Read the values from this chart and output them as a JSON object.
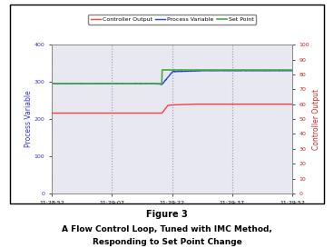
{
  "ylabel_left": "Process Variable",
  "ylabel_right": "Controller Output",
  "x_tick_labels": [
    "11:28:52",
    "11:29:07",
    "11:29:22",
    "11:29:37",
    "11:29:52"
  ],
  "x_tick_positions": [
    0,
    15,
    30,
    45,
    60
  ],
  "ylim_left": [
    0,
    400
  ],
  "ylim_right": [
    0,
    100
  ],
  "y_ticks_left": [
    0,
    100,
    200,
    300,
    400
  ],
  "y_ticks_right": [
    0,
    10,
    20,
    30,
    40,
    50,
    60,
    70,
    80,
    90,
    100
  ],
  "legend_labels": [
    "Controller Output",
    "Process Variable",
    "Set Point"
  ],
  "pv_color": "#2244cc",
  "co_color": "#ee4444",
  "sp_color": "#44aa44",
  "plot_bg_color": "#e8e8f0",
  "grid_color": "#9999bb",
  "left_ylabel_color": "#3333cc",
  "right_ylabel_color": "#cc2222",
  "caption_line1": "Figure 3",
  "caption_line2": "A Flow Control Loop, Tuned with IMC Method,",
  "caption_line3": "Responding to Set Point Change",
  "pv_init": 295.0,
  "pv_final": 330.0,
  "co_init": 54.0,
  "co_final": 60.0,
  "sp_init": 295.0,
  "sp_final": 332.0,
  "step_time": 27.5
}
